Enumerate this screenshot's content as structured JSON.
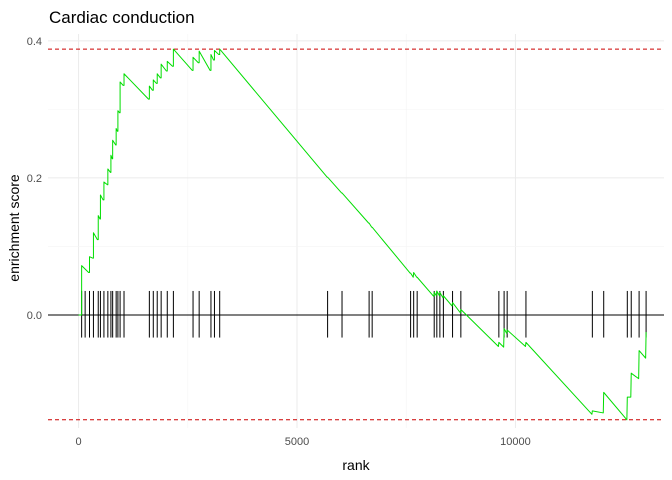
{
  "chart_data": {
    "type": "line",
    "title": "Cardiac conduction",
    "xlabel": "rank",
    "ylabel": "enrichment score",
    "xlim": [
      -700,
      13400
    ],
    "ylim": [
      -0.165,
      0.41
    ],
    "xticks": [
      0,
      5000,
      10000
    ],
    "yticks": [
      0.0,
      0.2,
      0.4
    ],
    "xtick_labels": [
      "0",
      "5000",
      "10000"
    ],
    "ytick_labels": [
      "0.0",
      "0.2",
      "0.4"
    ],
    "grid": true,
    "legend": "none",
    "colors": {
      "es_line": "#00dd00",
      "threshold": "#cc0000",
      "hits": "#000000",
      "zero": "#000000",
      "grid": "#ebebeb"
    },
    "thresholds": {
      "max_es": 0.388,
      "min_es": -0.153
    },
    "zero_line": 0,
    "hit_band": [
      -0.033,
      0.035
    ],
    "hits": [
      70,
      150,
      250,
      340,
      450,
      500,
      580,
      670,
      740,
      780,
      860,
      900,
      950,
      1040,
      1620,
      1710,
      1800,
      1890,
      2030,
      2170,
      2620,
      2760,
      3030,
      3110,
      3230,
      5700,
      6030,
      6650,
      6720,
      7600,
      7670,
      7750,
      8140,
      8200,
      8270,
      8350,
      8560,
      8750,
      9620,
      9740,
      9810,
      10240,
      11760,
      12020,
      12560,
      12650,
      12830,
      12990
    ],
    "es_series": [
      [
        0,
        0.0
      ],
      [
        70,
        0.0
      ],
      [
        70,
        0.072
      ],
      [
        230,
        0.062
      ],
      [
        250,
        0.062
      ],
      [
        250,
        0.085
      ],
      [
        320,
        0.083
      ],
      [
        340,
        0.083
      ],
      [
        340,
        0.12
      ],
      [
        430,
        0.11
      ],
      [
        450,
        0.11
      ],
      [
        450,
        0.145
      ],
      [
        490,
        0.14
      ],
      [
        500,
        0.14
      ],
      [
        500,
        0.175
      ],
      [
        560,
        0.168
      ],
      [
        580,
        0.168
      ],
      [
        580,
        0.194
      ],
      [
        660,
        0.19
      ],
      [
        670,
        0.19
      ],
      [
        670,
        0.213
      ],
      [
        730,
        0.208
      ],
      [
        740,
        0.208
      ],
      [
        740,
        0.233
      ],
      [
        770,
        0.228
      ],
      [
        780,
        0.228
      ],
      [
        780,
        0.255
      ],
      [
        850,
        0.248
      ],
      [
        860,
        0.248
      ],
      [
        860,
        0.272
      ],
      [
        890,
        0.268
      ],
      [
        900,
        0.268
      ],
      [
        900,
        0.298
      ],
      [
        940,
        0.295
      ],
      [
        950,
        0.295
      ],
      [
        950,
        0.34
      ],
      [
        1020,
        0.335
      ],
      [
        1040,
        0.335
      ],
      [
        1040,
        0.352
      ],
      [
        1600,
        0.315
      ],
      [
        1620,
        0.315
      ],
      [
        1620,
        0.334
      ],
      [
        1690,
        0.328
      ],
      [
        1710,
        0.328
      ],
      [
        1710,
        0.343
      ],
      [
        1780,
        0.338
      ],
      [
        1800,
        0.338
      ],
      [
        1800,
        0.352
      ],
      [
        1870,
        0.346
      ],
      [
        1890,
        0.346
      ],
      [
        1890,
        0.366
      ],
      [
        2010,
        0.356
      ],
      [
        2030,
        0.356
      ],
      [
        2030,
        0.37
      ],
      [
        2150,
        0.363
      ],
      [
        2170,
        0.363
      ],
      [
        2170,
        0.388
      ],
      [
        2600,
        0.357
      ],
      [
        2620,
        0.357
      ],
      [
        2620,
        0.376
      ],
      [
        2740,
        0.368
      ],
      [
        2760,
        0.368
      ],
      [
        2760,
        0.385
      ],
      [
        3010,
        0.357
      ],
      [
        3030,
        0.357
      ],
      [
        3030,
        0.38
      ],
      [
        3090,
        0.372
      ],
      [
        3110,
        0.372
      ],
      [
        3110,
        0.386
      ],
      [
        3210,
        0.38
      ],
      [
        3230,
        0.38
      ],
      [
        3230,
        0.388
      ],
      [
        5690,
        0.201
      ],
      [
        5700,
        0.201
      ],
      [
        6020,
        0.178
      ],
      [
        6030,
        0.178
      ],
      [
        6640,
        0.134
      ],
      [
        6650,
        0.134
      ],
      [
        6710,
        0.128
      ],
      [
        6720,
        0.128
      ],
      [
        7590,
        0.061
      ],
      [
        7600,
        0.061
      ],
      [
        7660,
        0.055
      ],
      [
        7670,
        0.062
      ],
      [
        7740,
        0.055
      ],
      [
        7750,
        0.055
      ],
      [
        8130,
        0.027
      ],
      [
        8140,
        0.033
      ],
      [
        8190,
        0.028
      ],
      [
        8200,
        0.035
      ],
      [
        8260,
        0.028
      ],
      [
        8270,
        0.033
      ],
      [
        8340,
        0.025
      ],
      [
        8350,
        0.028
      ],
      [
        8550,
        0.013
      ],
      [
        8560,
        0.018
      ],
      [
        8740,
        0.003
      ],
      [
        8750,
        0.008
      ],
      [
        9610,
        -0.046
      ],
      [
        9620,
        -0.04
      ],
      [
        9730,
        -0.047
      ],
      [
        9740,
        -0.02
      ],
      [
        9800,
        -0.027
      ],
      [
        9810,
        -0.022
      ],
      [
        10230,
        -0.046
      ],
      [
        10240,
        -0.04
      ],
      [
        11750,
        -0.145
      ],
      [
        11760,
        -0.14
      ],
      [
        12010,
        -0.143
      ],
      [
        12020,
        -0.113
      ],
      [
        12550,
        -0.153
      ],
      [
        12560,
        -0.12
      ],
      [
        12640,
        -0.12
      ],
      [
        12650,
        -0.085
      ],
      [
        12820,
        -0.093
      ],
      [
        12830,
        -0.052
      ],
      [
        12980,
        -0.063
      ],
      [
        12990,
        -0.025
      ]
    ]
  }
}
